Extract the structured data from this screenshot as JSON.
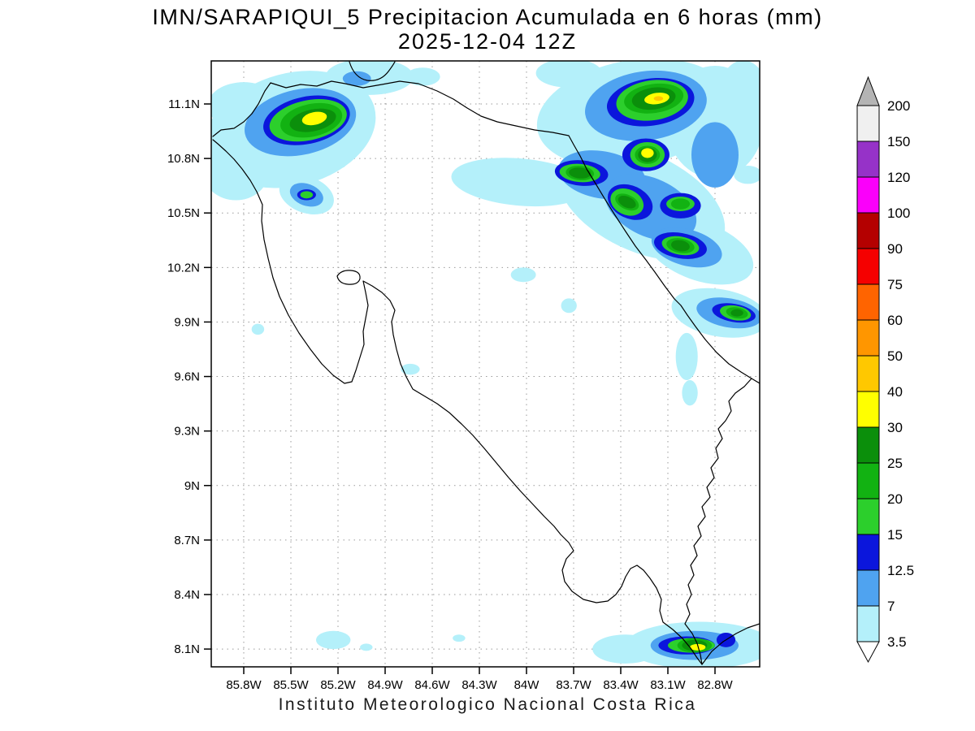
{
  "header": {
    "title": "IMN/SARAPIQUI_5 Precipitacion Acumulada en 6 horas (mm)",
    "datetime": "2025-12-04 12Z"
  },
  "footer": {
    "caption": "Instituto Meteorologico Nacional Costa Rica"
  },
  "axes": {
    "lat_ticks": [
      "11.1N",
      "10.8N",
      "10.5N",
      "10.2N",
      "9.9N",
      "9.6N",
      "9.3N",
      "9N",
      "8.7N",
      "8.4N",
      "8.1N"
    ],
    "lon_ticks": [
      "85.8W",
      "85.5W",
      "85.2W",
      "84.9W",
      "84.6W",
      "84.3W",
      "84W",
      "83.7W",
      "83.4W",
      "83.1W",
      "82.8W"
    ]
  },
  "colorbar": {
    "tick_labels": [
      "200",
      "150",
      "120",
      "100",
      "90",
      "75",
      "60",
      "50",
      "40",
      "30",
      "25",
      "20",
      "15",
      "12.5",
      "7",
      "3.5"
    ],
    "segment_colors_top_to_bottom": [
      "#f0f0f0",
      "#9632c8",
      "#fa00fa",
      "#b40000",
      "#f50000",
      "#ff6400",
      "#ff9600",
      "#ffc800",
      "#ffff00",
      "#0b8f0b",
      "#12b212",
      "#2ccf2c",
      "#0b16dc",
      "#4fa3f0",
      "#b4f0fa"
    ],
    "above_max_color": "#b4b4b4",
    "below_min_color": "#ffffff"
  },
  "chart_data": {
    "type": "heatmap",
    "title": "IMN/SARAPIQUI_5 Precipitacion Acumulada en 6 horas (mm)",
    "valid_time": "2025-12-04 12Z",
    "units": "mm per 6 h",
    "lon_range_deg_w": [
      86.0,
      82.5
    ],
    "lat_range_deg_n": [
      8.0,
      11.34
    ],
    "levels_mm": [
      3.5,
      7,
      12.5,
      15,
      20,
      25,
      30,
      40,
      50,
      60,
      75,
      90,
      100,
      120,
      150,
      200
    ],
    "level_colors": {
      "3.5": "#b4f0fa",
      "7": "#4fa3f0",
      "12.5": "#0b16dc",
      "15": "#2ccf2c",
      "20": "#12b212",
      "25": "#0b8f0b",
      "30": "#ffff00",
      "40": "#ffc800",
      "50": "#ff9600",
      "60": "#ff6400",
      "75": "#f50000",
      "90": "#b40000",
      "100": "#fa00fa",
      "120": "#9632c8",
      "150": "#f0f0f0"
    },
    "cells_note": "Ellipse approximations of shaded precip areas: [lon_degW, lat_degN, rx_deg, ry_deg, rotation_deg, level_mm]",
    "cells": [
      [
        85.49,
        10.96,
        0.54,
        0.31,
        -15,
        3.5
      ],
      [
        85.85,
        10.73,
        0.21,
        0.16,
        0,
        3.5
      ],
      [
        85.8,
        11.09,
        0.23,
        0.13,
        0,
        3.5
      ],
      [
        85.97,
        10.85,
        0.09,
        0.18,
        0,
        3.5
      ],
      [
        85.4,
        10.6,
        0.18,
        0.1,
        20,
        3.5
      ],
      [
        85.0,
        11.25,
        0.28,
        0.1,
        0,
        3.5
      ],
      [
        85.17,
        10.85,
        0.04,
        0.1,
        0,
        3.5
      ],
      [
        84.66,
        11.25,
        0.11,
        0.05,
        0,
        3.5
      ],
      [
        84.04,
        10.67,
        0.44,
        0.13,
        5,
        3.5
      ],
      [
        83.32,
        11.05,
        0.62,
        0.29,
        -10,
        3.5
      ],
      [
        83.27,
        10.56,
        0.57,
        0.27,
        25,
        3.5
      ],
      [
        82.8,
        11.0,
        0.31,
        0.31,
        0,
        3.5
      ],
      [
        82.9,
        10.29,
        0.36,
        0.16,
        20,
        3.5
      ],
      [
        82.62,
        11.14,
        0.16,
        0.2,
        0,
        3.5
      ],
      [
        83.73,
        11.27,
        0.21,
        0.08,
        0,
        3.5
      ],
      [
        82.77,
        9.95,
        0.31,
        0.13,
        10,
        3.5
      ],
      [
        82.98,
        9.71,
        0.07,
        0.13,
        0,
        3.5
      ],
      [
        82.96,
        9.51,
        0.05,
        0.07,
        0,
        3.5
      ],
      [
        84.02,
        10.16,
        0.08,
        0.04,
        0,
        3.5
      ],
      [
        83.73,
        9.99,
        0.05,
        0.04,
        0,
        3.5
      ],
      [
        84.74,
        9.64,
        0.06,
        0.03,
        0,
        3.5
      ],
      [
        85.71,
        9.86,
        0.04,
        0.03,
        0,
        3.5
      ],
      [
        82.9,
        8.12,
        0.47,
        0.13,
        0,
        3.5
      ],
      [
        83.37,
        8.1,
        0.21,
        0.08,
        0,
        3.5
      ],
      [
        85.23,
        8.15,
        0.11,
        0.05,
        0,
        3.5
      ],
      [
        85.02,
        8.11,
        0.04,
        0.02,
        0,
        3.5
      ],
      [
        84.43,
        8.16,
        0.04,
        0.02,
        0,
        3.5
      ],
      [
        82.59,
        10.71,
        0.09,
        0.05,
        0,
        3.5
      ],
      [
        85.44,
        11.0,
        0.36,
        0.18,
        -12,
        7
      ],
      [
        85.4,
        10.6,
        0.11,
        0.06,
        20,
        7
      ],
      [
        85.08,
        11.24,
        0.09,
        0.04,
        0,
        7
      ],
      [
        83.24,
        11.09,
        0.39,
        0.19,
        -8,
        7
      ],
      [
        83.52,
        10.71,
        0.28,
        0.13,
        10,
        7
      ],
      [
        83.21,
        10.53,
        0.31,
        0.16,
        25,
        7
      ],
      [
        82.98,
        10.31,
        0.23,
        0.1,
        15,
        7
      ],
      [
        82.8,
        10.82,
        0.15,
        0.18,
        0,
        7
      ],
      [
        82.71,
        9.95,
        0.21,
        0.08,
        10,
        7
      ],
      [
        82.93,
        8.12,
        0.28,
        0.08,
        0,
        7
      ],
      [
        85.4,
        11.01,
        0.28,
        0.13,
        -12,
        12.5
      ],
      [
        85.4,
        10.6,
        0.06,
        0.03,
        0,
        12.5
      ],
      [
        83.21,
        11.11,
        0.28,
        0.13,
        -8,
        12.5
      ],
      [
        83.24,
        10.82,
        0.15,
        0.09,
        0,
        12.5
      ],
      [
        83.65,
        10.72,
        0.17,
        0.07,
        5,
        12.5
      ],
      [
        83.34,
        10.56,
        0.15,
        0.09,
        25,
        12.5
      ],
      [
        83.02,
        10.54,
        0.13,
        0.07,
        0,
        12.5
      ],
      [
        83.02,
        10.32,
        0.17,
        0.07,
        10,
        12.5
      ],
      [
        82.68,
        9.95,
        0.14,
        0.05,
        10,
        12.5
      ],
      [
        82.98,
        8.12,
        0.18,
        0.05,
        0,
        12.5
      ],
      [
        82.73,
        8.15,
        0.06,
        0.04,
        0,
        12.5
      ],
      [
        85.39,
        11.01,
        0.25,
        0.11,
        -12,
        15
      ],
      [
        85.4,
        10.6,
        0.04,
        0.02,
        0,
        15
      ],
      [
        83.2,
        11.12,
        0.23,
        0.11,
        -8,
        15
      ],
      [
        83.23,
        10.82,
        0.11,
        0.07,
        0,
        15
      ],
      [
        83.66,
        10.72,
        0.13,
        0.05,
        5,
        15
      ],
      [
        83.36,
        10.56,
        0.11,
        0.07,
        25,
        15
      ],
      [
        83.02,
        10.55,
        0.09,
        0.04,
        0,
        15
      ],
      [
        83.02,
        10.32,
        0.12,
        0.05,
        10,
        15
      ],
      [
        82.67,
        9.95,
        0.1,
        0.04,
        10,
        15
      ],
      [
        82.95,
        8.12,
        0.15,
        0.04,
        0,
        15
      ],
      [
        85.37,
        11.01,
        0.2,
        0.09,
        -12,
        20
      ],
      [
        83.19,
        11.13,
        0.19,
        0.08,
        -8,
        20
      ],
      [
        83.23,
        10.82,
        0.08,
        0.05,
        0,
        20
      ],
      [
        83.66,
        10.72,
        0.09,
        0.04,
        5,
        20
      ],
      [
        83.36,
        10.56,
        0.08,
        0.04,
        25,
        20
      ],
      [
        83.02,
        10.55,
        0.06,
        0.03,
        0,
        20
      ],
      [
        83.02,
        10.32,
        0.09,
        0.04,
        10,
        20
      ],
      [
        82.66,
        9.95,
        0.07,
        0.03,
        10,
        20
      ],
      [
        82.93,
        8.12,
        0.11,
        0.04,
        0,
        20
      ],
      [
        85.36,
        11.01,
        0.15,
        0.06,
        -12,
        25
      ],
      [
        83.19,
        11.13,
        0.14,
        0.06,
        -8,
        25
      ],
      [
        83.23,
        10.82,
        0.06,
        0.04,
        0,
        25
      ],
      [
        83.66,
        10.72,
        0.07,
        0.03,
        5,
        25
      ],
      [
        83.36,
        10.56,
        0.06,
        0.03,
        25,
        25
      ],
      [
        83.02,
        10.32,
        0.06,
        0.03,
        10,
        25
      ],
      [
        82.66,
        9.95,
        0.04,
        0.02,
        0,
        25
      ],
      [
        82.93,
        8.12,
        0.08,
        0.03,
        0,
        25
      ],
      [
        85.35,
        11.02,
        0.08,
        0.035,
        -12,
        30
      ],
      [
        83.17,
        11.13,
        0.08,
        0.031,
        -8,
        30
      ],
      [
        83.23,
        10.83,
        0.04,
        0.027,
        0,
        30
      ],
      [
        82.91,
        8.11,
        0.05,
        0.018,
        0,
        30
      ],
      [
        83.16,
        11.13,
        0.03,
        0.013,
        0,
        40
      ]
    ]
  }
}
